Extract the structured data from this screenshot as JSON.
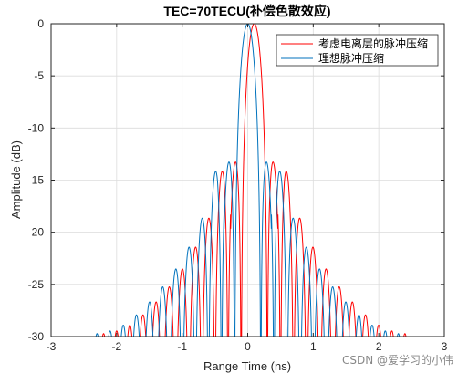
{
  "chart_data": {
    "type": "line",
    "title": "TEC=70TECU(补偿色散效应)",
    "xlabel": "Range Time (ns)",
    "ylabel": "Amplitude (dB)",
    "xlim": [
      -3,
      3
    ],
    "ylim": [
      -30,
      0
    ],
    "xticks": [
      "-3",
      "-2",
      "-1",
      "0",
      "1",
      "2",
      "3"
    ],
    "yticks": [
      "0",
      "-5",
      "-10",
      "-15",
      "-20",
      "-25",
      "-30"
    ],
    "grid": true,
    "legend_position": "top-right",
    "series": [
      {
        "name": "考虑电离层的脉冲压缩",
        "color": "#ff0000",
        "peak_x": 0.1,
        "null_spacing": 0.1,
        "sidelobes": [
          {
            "x": -0.46,
            "y": -13.3
          },
          {
            "x": 0.46,
            "y": -13.4
          },
          {
            "x": -0.64,
            "y": -17.8
          },
          {
            "x": 0.64,
            "y": -17.8
          },
          {
            "x": -0.84,
            "y": -20.8
          },
          {
            "x": 0.84,
            "y": -20.8
          },
          {
            "x": -1.04,
            "y": -23.0
          },
          {
            "x": 1.04,
            "y": -23.0
          },
          {
            "x": -1.24,
            "y": -24.8
          },
          {
            "x": 1.24,
            "y": -24.8
          },
          {
            "x": -1.44,
            "y": -26.3
          },
          {
            "x": 1.44,
            "y": -26.3
          },
          {
            "x": -1.64,
            "y": -27.6
          },
          {
            "x": 1.64,
            "y": -27.6
          },
          {
            "x": -1.84,
            "y": -28.7
          },
          {
            "x": 1.84,
            "y": -28.7
          },
          {
            "x": -2.04,
            "y": -29.4
          },
          {
            "x": 2.04,
            "y": -29.4
          },
          {
            "x": -2.24,
            "y": -29.6
          },
          {
            "x": 2.24,
            "y": -29.6
          }
        ]
      },
      {
        "name": "理想脉冲压缩",
        "color": "#0072bd",
        "peak_x": 0.0,
        "null_spacing": 0.1,
        "sidelobes": [
          {
            "x": -0.46,
            "y": -13.3
          },
          {
            "x": 0.46,
            "y": -13.3
          },
          {
            "x": -0.64,
            "y": -17.8
          },
          {
            "x": 0.64,
            "y": -17.8
          },
          {
            "x": -0.84,
            "y": -20.8
          },
          {
            "x": 0.84,
            "y": -20.8
          },
          {
            "x": -1.04,
            "y": -23.0
          },
          {
            "x": 1.04,
            "y": -23.0
          },
          {
            "x": -1.24,
            "y": -24.8
          },
          {
            "x": 1.24,
            "y": -24.8
          },
          {
            "x": -1.44,
            "y": -26.3
          },
          {
            "x": 1.44,
            "y": -26.3
          },
          {
            "x": -1.64,
            "y": -27.6
          },
          {
            "x": 1.64,
            "y": -27.6
          },
          {
            "x": -1.84,
            "y": -28.7
          },
          {
            "x": 1.84,
            "y": -28.7
          },
          {
            "x": -2.04,
            "y": -29.4
          },
          {
            "x": 2.04,
            "y": -29.4
          },
          {
            "x": -2.24,
            "y": -29.6
          },
          {
            "x": 2.24,
            "y": -29.6
          }
        ]
      }
    ]
  },
  "watermark": "CSDN @爱学习的小伟"
}
